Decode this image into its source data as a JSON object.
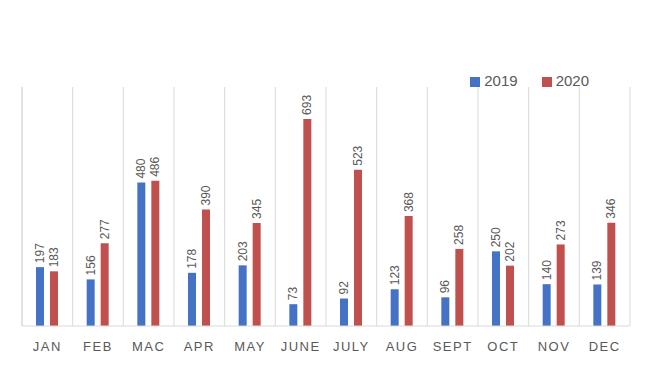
{
  "chart_data": {
    "type": "bar",
    "categories": [
      "JAN",
      "FEB",
      "MAC",
      "APR",
      "MAY",
      "JUNE",
      "JULY",
      "AUG",
      "SEPT",
      "OCT",
      "NOV",
      "DEC"
    ],
    "series": [
      {
        "name": "2019",
        "color": "#4472c4",
        "values": [
          197,
          156,
          480,
          178,
          203,
          73,
          92,
          123,
          96,
          250,
          140,
          139
        ]
      },
      {
        "name": "2020",
        "color": "#c0504d",
        "values": [
          183,
          277,
          486,
          390,
          345,
          693,
          523,
          368,
          258,
          202,
          273,
          346
        ]
      }
    ],
    "ylim": [
      0,
      800
    ],
    "grid": true,
    "legend": "top-right",
    "data_labels": true,
    "tick_labels": "x"
  }
}
